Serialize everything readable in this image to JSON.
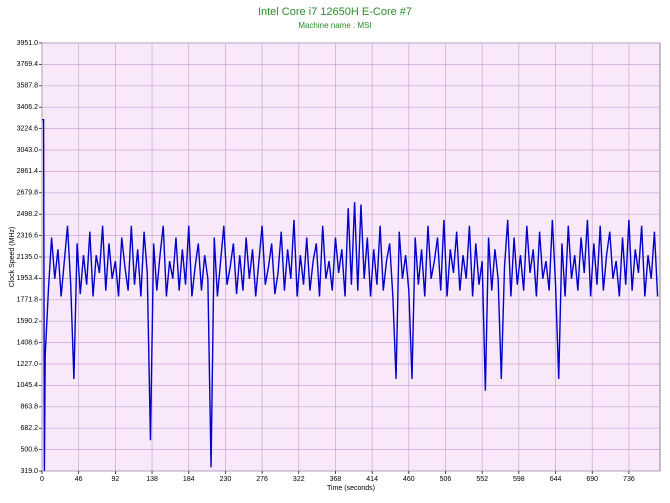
{
  "chart_data": {
    "type": "line",
    "title": "Intel Core i7 12650H E-Core #7",
    "subtitle": "Machine name : MSI",
    "x_label": "Time (seconds)",
    "y_label": "Clock Speed (MHz)",
    "color": "#0000cc",
    "grid": true,
    "xlim": [
      0,
      775
    ],
    "xticks": [
      0,
      46,
      92,
      138,
      184,
      230,
      276,
      322,
      368,
      414,
      460,
      506,
      552,
      598,
      644,
      690,
      736
    ],
    "ylim": [
      319,
      3951
    ],
    "yticks": [
      {
        "value": 319,
        "label": "319.0"
      },
      500.6,
      682.2,
      863.8,
      1045.4,
      {
        "value": 1227,
        "label": "1227.0"
      },
      1408.6,
      1590.2,
      1771.8,
      1953.4,
      {
        "value": 2135,
        "label": "2135.0"
      },
      2316.6,
      2498.2,
      2679.8,
      2861.4,
      {
        "value": 3043,
        "label": "3043.0"
      },
      3224.6,
      3406.2,
      3587.8,
      3769.4,
      {
        "value": 3951,
        "label": "3951.0"
      }
    ],
    "x": [
      0,
      2,
      3,
      4,
      8,
      12,
      16,
      20,
      24,
      28,
      32,
      36,
      40,
      44,
      48,
      52,
      56,
      60,
      64,
      68,
      72,
      76,
      80,
      84,
      88,
      92,
      96,
      100,
      104,
      108,
      112,
      116,
      120,
      124,
      128,
      132,
      136,
      140,
      144,
      148,
      152,
      156,
      160,
      164,
      168,
      172,
      176,
      180,
      184,
      188,
      192,
      196,
      200,
      204,
      208,
      212,
      216,
      220,
      224,
      228,
      232,
      236,
      240,
      244,
      248,
      252,
      256,
      260,
      264,
      268,
      272,
      276,
      280,
      284,
      288,
      292,
      296,
      300,
      304,
      308,
      312,
      316,
      320,
      324,
      328,
      332,
      336,
      340,
      344,
      348,
      352,
      356,
      360,
      364,
      368,
      372,
      376,
      380,
      384,
      388,
      392,
      396,
      400,
      404,
      408,
      412,
      416,
      420,
      424,
      428,
      432,
      436,
      440,
      444,
      448,
      452,
      456,
      460,
      464,
      468,
      472,
      476,
      480,
      484,
      488,
      492,
      496,
      500,
      504,
      508,
      512,
      516,
      520,
      524,
      528,
      532,
      536,
      540,
      544,
      548,
      552,
      556,
      560,
      564,
      568,
      572,
      576,
      580,
      584,
      588,
      592,
      596,
      600,
      604,
      608,
      612,
      616,
      620,
      624,
      628,
      632,
      636,
      640,
      644,
      648,
      652,
      656,
      660,
      664,
      668,
      672,
      676,
      680,
      684,
      688,
      692,
      696,
      700,
      704,
      708,
      712,
      716,
      720,
      724,
      728,
      732,
      736,
      740,
      744,
      748,
      752,
      756,
      760,
      764,
      768,
      772
    ],
    "values": [
      3300,
      3300,
      320,
      1300,
      1850,
      2300,
      1950,
      2200,
      1800,
      2100,
      2400,
      1900,
      1100,
      2250,
      1820,
      2150,
      1900,
      2350,
      1800,
      2150,
      2000,
      2400,
      1850,
      2250,
      1950,
      2100,
      1800,
      2300,
      2050,
      1850,
      2400,
      1900,
      2200,
      1800,
      2350,
      2000,
      580,
      2250,
      1850,
      2150,
      2400,
      1800,
      2100,
      1950,
      2300,
      1850,
      2200,
      1900,
      2400,
      1800,
      2050,
      2250,
      1850,
      2150,
      1950,
      350,
      2300,
      1800,
      2100,
      2400,
      1900,
      2050,
      2250,
      1820,
      2150,
      1850,
      2300,
      1950,
      2200,
      1800,
      2100,
      2400,
      1900,
      2050,
      2250,
      1820,
      2000,
      2350,
      1850,
      2200,
      1950,
      2450,
      1800,
      2150,
      1900,
      2300,
      1850,
      2100,
      2250,
      1800,
      2400,
      1950,
      2100,
      1850,
      2300,
      2000,
      2200,
      1800,
      2550,
      1900,
      2600,
      1850,
      2580,
      1950,
      2300,
      1800,
      2200,
      1900,
      2400,
      1850,
      2100,
      2250,
      1800,
      1100,
      2350,
      1950,
      2150,
      1850,
      1100,
      2300,
      1900,
      2200,
      1800,
      2400,
      1950,
      2100,
      2300,
      1850,
      2450,
      1800,
      2200,
      2000,
      2350,
      1850,
      2150,
      1950,
      2400,
      1800,
      2250,
      1900,
      2100,
      1000,
      2300,
      1850,
      2200,
      1950,
      1100,
      2050,
      2450,
      1800,
      2300,
      1900,
      2150,
      1850,
      2400,
      2000,
      2200,
      1800,
      2350,
      1950,
      2100,
      1850,
      2450,
      1900,
      1100,
      2250,
      1800,
      2400,
      1950,
      2150,
      1850,
      2300,
      2000,
      2450,
      1800,
      2250,
      1900,
      2400,
      1850,
      2150,
      2350,
      1950,
      2100,
      1800,
      2300,
      1900,
      2450,
      1850,
      2200,
      2000,
      2400,
      1800,
      2150,
      1950,
      2350,
      1800
    ]
  }
}
